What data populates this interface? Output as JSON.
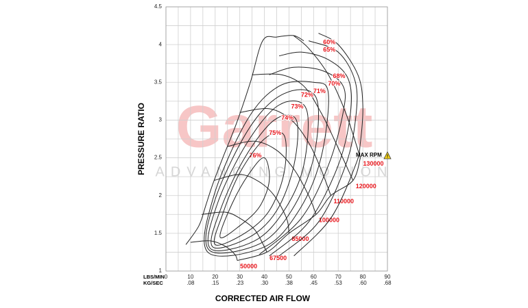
{
  "chart_data": {
    "type": "compressor_map",
    "ylabel": "PRESSURE RATIO",
    "xlabel": "CORRECTED AIR FLOW",
    "x_unit_label": "LBS/MIN",
    "x2_unit_label": "KG/SEC",
    "xlim": [
      0,
      90
    ],
    "ylim": [
      1,
      4.5
    ],
    "xticks": [
      0,
      10,
      20,
      30,
      40,
      50,
      60,
      70,
      80,
      90
    ],
    "x2ticks": [
      {
        "value": 10,
        "label": ".08"
      },
      {
        "value": 20,
        "label": ".15"
      },
      {
        "value": 30,
        "label": ".23"
      },
      {
        "value": 40,
        "label": ".30"
      },
      {
        "value": 50,
        "label": ".38"
      },
      {
        "value": 60,
        "label": ".45"
      },
      {
        "value": 70,
        "label": ".53"
      },
      {
        "value": 80,
        "label": ".60"
      },
      {
        "value": 90,
        "label": ".68"
      }
    ],
    "yticks": [
      1,
      1.5,
      2,
      2.5,
      3,
      3.5,
      4,
      4.5
    ],
    "xgrid": [
      0,
      5,
      10,
      15,
      20,
      25,
      30,
      35,
      40,
      45,
      50,
      55,
      60,
      65,
      70,
      75,
      80,
      85,
      90
    ],
    "ygrid": [
      1,
      1.25,
      1.5,
      1.75,
      2,
      2.25,
      2.5,
      2.75,
      3,
      3.25,
      3.5,
      3.75,
      4,
      4.25,
      4.5
    ],
    "line_color": "#222222",
    "label_color": "#e8151b",
    "watermark": {
      "title": "Garrett",
      "subtitle": "ADVANCING MOTION",
      "title_color": "#f7c6c6",
      "subtitle_color": "#d6d6d6"
    },
    "max_rpm_label": "MAX RPM",
    "surge_line": {
      "x": [
        8.1,
        13.4,
        16.2,
        18.9,
        23.1,
        28.7,
        34.3,
        39.3,
        45,
        51.8,
        56
      ],
      "y": [
        1.35,
        1.6,
        1.87,
        2.14,
        2.5,
        2.96,
        3.5,
        4.05,
        4.1,
        4.12,
        4.05
      ]
    },
    "speed_lines": [
      {
        "name": "50000",
        "x": [
          10,
          18,
          24,
          28,
          29
        ],
        "y": [
          1.38,
          1.4,
          1.33,
          1.22,
          1.14
        ]
      },
      {
        "name": "67500",
        "x": [
          14.5,
          24,
          30,
          36,
          40,
          41
        ],
        "y": [
          1.75,
          1.78,
          1.7,
          1.55,
          1.32,
          1.25
        ]
      },
      {
        "name": "85000",
        "x": [
          19.5,
          30,
          38,
          44,
          49,
          50
        ],
        "y": [
          2.2,
          2.28,
          2.18,
          2,
          1.7,
          1.5
        ]
      },
      {
        "name": "100000",
        "x": [
          25,
          36,
          45,
          52,
          58,
          61
        ],
        "y": [
          2.65,
          2.72,
          2.6,
          2.35,
          2,
          1.75
        ]
      },
      {
        "name": "110000",
        "x": [
          30,
          42,
          51,
          58,
          63,
          67
        ],
        "y": [
          3.1,
          3.15,
          3,
          2.7,
          2.35,
          2
        ]
      },
      {
        "name": "120000",
        "x": [
          35,
          47,
          56,
          63,
          69,
          76
        ],
        "y": [
          3.6,
          3.6,
          3.45,
          3.1,
          2.7,
          2.2
        ]
      },
      {
        "name": "130000",
        "x": [
          51.8,
          58,
          66,
          73,
          79
        ],
        "y": [
          4.12,
          3.95,
          3.6,
          3.1,
          2.5
        ]
      }
    ],
    "efficiency_islands": [
      {
        "name": "76%",
        "closed": true,
        "x": [
          22,
          30,
          38,
          42,
          40,
          34,
          27
        ],
        "y": [
          1.45,
          1.6,
          1.85,
          2.2,
          2.5,
          2.3,
          1.9
        ]
      },
      {
        "name": "75%",
        "closed": true,
        "x": [
          20,
          32,
          42,
          48,
          48,
          40,
          30,
          23
        ],
        "y": [
          1.35,
          1.5,
          1.8,
          2.3,
          2.8,
          2.75,
          2.3,
          1.75
        ]
      },
      {
        "name": "74%",
        "closed": true,
        "x": [
          19,
          34,
          45,
          52,
          53,
          44,
          32,
          22
        ],
        "y": [
          1.32,
          1.45,
          1.8,
          2.4,
          3,
          3,
          2.5,
          1.8
        ]
      },
      {
        "name": "73%",
        "closed": true,
        "x": [
          18,
          36,
          48,
          56,
          57,
          46,
          33,
          21
        ],
        "y": [
          1.3,
          1.4,
          1.8,
          2.4,
          3.15,
          3.2,
          2.7,
          1.9
        ]
      },
      {
        "name": "72%",
        "closed": true,
        "x": [
          17.5,
          38,
          51,
          60,
          61,
          48,
          34,
          20
        ],
        "y": [
          1.28,
          1.36,
          1.8,
          2.5,
          3.3,
          3.35,
          2.9,
          1.95
        ]
      },
      {
        "name": "71%",
        "closed": true,
        "x": [
          17,
          40,
          54,
          63,
          66,
          60,
          46,
          33,
          19.5
        ],
        "y": [
          1.25,
          1.32,
          1.8,
          2.5,
          3.35,
          3.5,
          3.45,
          3,
          2
        ]
      },
      {
        "name": "70%",
        "closed": false,
        "x": [
          38,
          55,
          66,
          72,
          72,
          64,
          52,
          42
        ],
        "y": [
          1.22,
          1.7,
          2.4,
          3.1,
          3.45,
          3.65,
          3.7,
          3.6
        ]
      },
      {
        "name": "68%",
        "closed": false,
        "x": [
          42,
          58,
          70,
          75,
          74,
          66,
          55,
          46
        ],
        "y": [
          1.2,
          1.65,
          2.4,
          3.1,
          3.55,
          3.8,
          3.9,
          3.85
        ]
      },
      {
        "name": "65%",
        "closed": false,
        "x": [
          46,
          62,
          73,
          77,
          77,
          70,
          58
        ],
        "y": [
          1.2,
          1.65,
          2.4,
          3,
          3.5,
          3.9,
          4.05
        ]
      },
      {
        "name": "60%",
        "closed": false,
        "x": [
          52,
          67,
          77,
          79,
          80,
          78,
          70,
          62
        ],
        "y": [
          1.2,
          1.7,
          2.4,
          2.7,
          3.2,
          3.6,
          4,
          4.15
        ]
      }
    ]
  }
}
